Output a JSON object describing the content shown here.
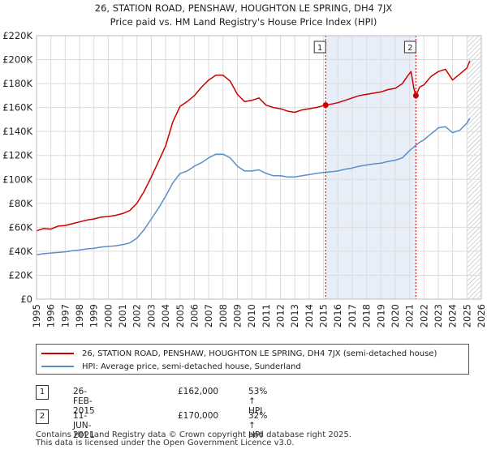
{
  "chart_data": {
    "type": "line",
    "title": "26, STATION ROAD, PENSHAW, HOUGHTON LE SPRING, DH4 7JX",
    "subtitle": "Price paid vs. HM Land Registry's House Price Index (HPI)",
    "xlim": [
      1995,
      2026
    ],
    "ylim": [
      0,
      220000
    ],
    "y_ticks": [
      0,
      20000,
      40000,
      60000,
      80000,
      100000,
      120000,
      140000,
      160000,
      180000,
      200000,
      220000
    ],
    "y_tick_labels": [
      "£0",
      "£20K",
      "£40K",
      "£60K",
      "£80K",
      "£100K",
      "£120K",
      "£140K",
      "£160K",
      "£180K",
      "£200K",
      "£220K"
    ],
    "x_ticks": [
      1995,
      1996,
      1997,
      1998,
      1999,
      2000,
      2001,
      2002,
      2003,
      2004,
      2005,
      2006,
      2007,
      2008,
      2009,
      2010,
      2011,
      2012,
      2013,
      2014,
      2015,
      2016,
      2017,
      2018,
      2019,
      2020,
      2021,
      2022,
      2023,
      2024,
      2025,
      2026
    ],
    "x_tick_labels": [
      "1995",
      "1996",
      "1997",
      "1998",
      "1999",
      "2000",
      "2001",
      "2002",
      "2003",
      "2004",
      "2005",
      "2006",
      "2007",
      "2008",
      "2009",
      "2010",
      "2011",
      "2012",
      "2013",
      "2014",
      "2015",
      "2016",
      "2017",
      "2018",
      "2019",
      "2020",
      "2021",
      "2022",
      "2023",
      "2024",
      "2025",
      "2026"
    ],
    "grid": true,
    "shaded_period": [
      2015.15,
      2021.44
    ],
    "future_hatch_from": 2025.0,
    "series": [
      {
        "name": "26, STATION ROAD, PENSHAW, HOUGHTON LE SPRING, DH4 7JX (semi-detached house)",
        "color": "#cc0000",
        "points": [
          [
            1995.0,
            57000
          ],
          [
            1995.5,
            59000
          ],
          [
            1996.0,
            58500
          ],
          [
            1996.5,
            61000
          ],
          [
            1997.0,
            61500
          ],
          [
            1997.5,
            63000
          ],
          [
            1998.0,
            64500
          ],
          [
            1998.5,
            66000
          ],
          [
            1999.0,
            67000
          ],
          [
            1999.5,
            68500
          ],
          [
            2000.0,
            69000
          ],
          [
            2000.5,
            70000
          ],
          [
            2001.0,
            71500
          ],
          [
            2001.5,
            74000
          ],
          [
            2002.0,
            80000
          ],
          [
            2002.5,
            90000
          ],
          [
            2003.0,
            102000
          ],
          [
            2003.5,
            115000
          ],
          [
            2004.0,
            128000
          ],
          [
            2004.5,
            148000
          ],
          [
            2005.0,
            161000
          ],
          [
            2005.5,
            165000
          ],
          [
            2006.0,
            170000
          ],
          [
            2006.5,
            177000
          ],
          [
            2007.0,
            183000
          ],
          [
            2007.5,
            187000
          ],
          [
            2008.0,
            187000
          ],
          [
            2008.5,
            182000
          ],
          [
            2009.0,
            171000
          ],
          [
            2009.5,
            165000
          ],
          [
            2010.0,
            166000
          ],
          [
            2010.5,
            168000
          ],
          [
            2011.0,
            162000
          ],
          [
            2011.5,
            160000
          ],
          [
            2012.0,
            159000
          ],
          [
            2012.5,
            157000
          ],
          [
            2013.0,
            156000
          ],
          [
            2013.5,
            158000
          ],
          [
            2014.0,
            159000
          ],
          [
            2014.5,
            160000
          ],
          [
            2015.15,
            162000
          ],
          [
            2015.6,
            163000
          ],
          [
            2016.0,
            164000
          ],
          [
            2016.5,
            166000
          ],
          [
            2017.0,
            168000
          ],
          [
            2017.5,
            170000
          ],
          [
            2018.0,
            171000
          ],
          [
            2018.5,
            172000
          ],
          [
            2019.0,
            173000
          ],
          [
            2019.5,
            175000
          ],
          [
            2020.0,
            176000
          ],
          [
            2020.5,
            180000
          ],
          [
            2020.9,
            187000
          ],
          [
            2021.1,
            190000
          ],
          [
            2021.3,
            176000
          ],
          [
            2021.44,
            170000
          ],
          [
            2021.7,
            177000
          ],
          [
            2022.0,
            179000
          ],
          [
            2022.5,
            186000
          ],
          [
            2023.0,
            190000
          ],
          [
            2023.5,
            192000
          ],
          [
            2024.0,
            183000
          ],
          [
            2024.5,
            188000
          ],
          [
            2025.0,
            193000
          ],
          [
            2025.2,
            199000
          ]
        ]
      },
      {
        "name": "HPI: Average price, semi-detached house, Sunderland",
        "color": "#5b8ec9",
        "points": [
          [
            1995.0,
            37000
          ],
          [
            1995.5,
            38000
          ],
          [
            1996.0,
            38500
          ],
          [
            1996.5,
            39000
          ],
          [
            1997.0,
            39500
          ],
          [
            1997.5,
            40500
          ],
          [
            1998.0,
            41000
          ],
          [
            1998.5,
            42000
          ],
          [
            1999.0,
            42500
          ],
          [
            1999.5,
            43500
          ],
          [
            2000.0,
            44000
          ],
          [
            2000.5,
            44500
          ],
          [
            2001.0,
            45500
          ],
          [
            2001.5,
            47000
          ],
          [
            2002.0,
            51000
          ],
          [
            2002.5,
            58000
          ],
          [
            2003.0,
            67000
          ],
          [
            2003.5,
            76000
          ],
          [
            2004.0,
            86000
          ],
          [
            2004.5,
            97000
          ],
          [
            2005.0,
            105000
          ],
          [
            2005.5,
            107000
          ],
          [
            2006.0,
            111000
          ],
          [
            2006.5,
            114000
          ],
          [
            2007.0,
            118000
          ],
          [
            2007.5,
            121000
          ],
          [
            2008.0,
            121000
          ],
          [
            2008.5,
            118000
          ],
          [
            2009.0,
            111000
          ],
          [
            2009.5,
            107000
          ],
          [
            2010.0,
            107000
          ],
          [
            2010.5,
            108000
          ],
          [
            2011.0,
            105000
          ],
          [
            2011.5,
            103000
          ],
          [
            2012.0,
            103000
          ],
          [
            2012.5,
            102000
          ],
          [
            2013.0,
            102000
          ],
          [
            2013.5,
            103000
          ],
          [
            2014.0,
            104000
          ],
          [
            2014.5,
            105000
          ],
          [
            2015.15,
            106000
          ],
          [
            2015.6,
            106500
          ],
          [
            2016.0,
            107000
          ],
          [
            2016.5,
            108500
          ],
          [
            2017.0,
            109500
          ],
          [
            2017.5,
            111000
          ],
          [
            2018.0,
            112000
          ],
          [
            2018.5,
            113000
          ],
          [
            2019.0,
            113500
          ],
          [
            2019.5,
            115000
          ],
          [
            2020.0,
            116000
          ],
          [
            2020.5,
            118000
          ],
          [
            2021.0,
            124000
          ],
          [
            2021.44,
            128500
          ],
          [
            2021.7,
            131000
          ],
          [
            2022.0,
            133000
          ],
          [
            2022.5,
            138000
          ],
          [
            2023.0,
            143000
          ],
          [
            2023.5,
            144000
          ],
          [
            2024.0,
            139000
          ],
          [
            2024.5,
            141000
          ],
          [
            2025.0,
            147000
          ],
          [
            2025.2,
            151000
          ]
        ]
      }
    ],
    "sales": [
      {
        "label": "1",
        "x": 2015.15,
        "price": 162000,
        "date": "26-FEB-2015",
        "price_text": "£162,000",
        "hpi_text": "53% ↑ HPI"
      },
      {
        "label": "2",
        "x": 2021.44,
        "price": 170000,
        "date": "11-JUN-2021",
        "price_text": "£170,000",
        "hpi_text": "32% ↑ HPI"
      }
    ]
  },
  "legend": {
    "red_label": "26, STATION ROAD, PENSHAW, HOUGHTON LE SPRING, DH4 7JX (semi-detached house)",
    "blue_label": "HPI: Average price, semi-detached house, Sunderland",
    "red_color": "#cc0000",
    "blue_color": "#5b8ec9"
  },
  "footer": {
    "line1": "Contains HM Land Registry data © Crown copyright and database right 2025.",
    "line2": "This data is licensed under the Open Government Licence v3.0."
  }
}
